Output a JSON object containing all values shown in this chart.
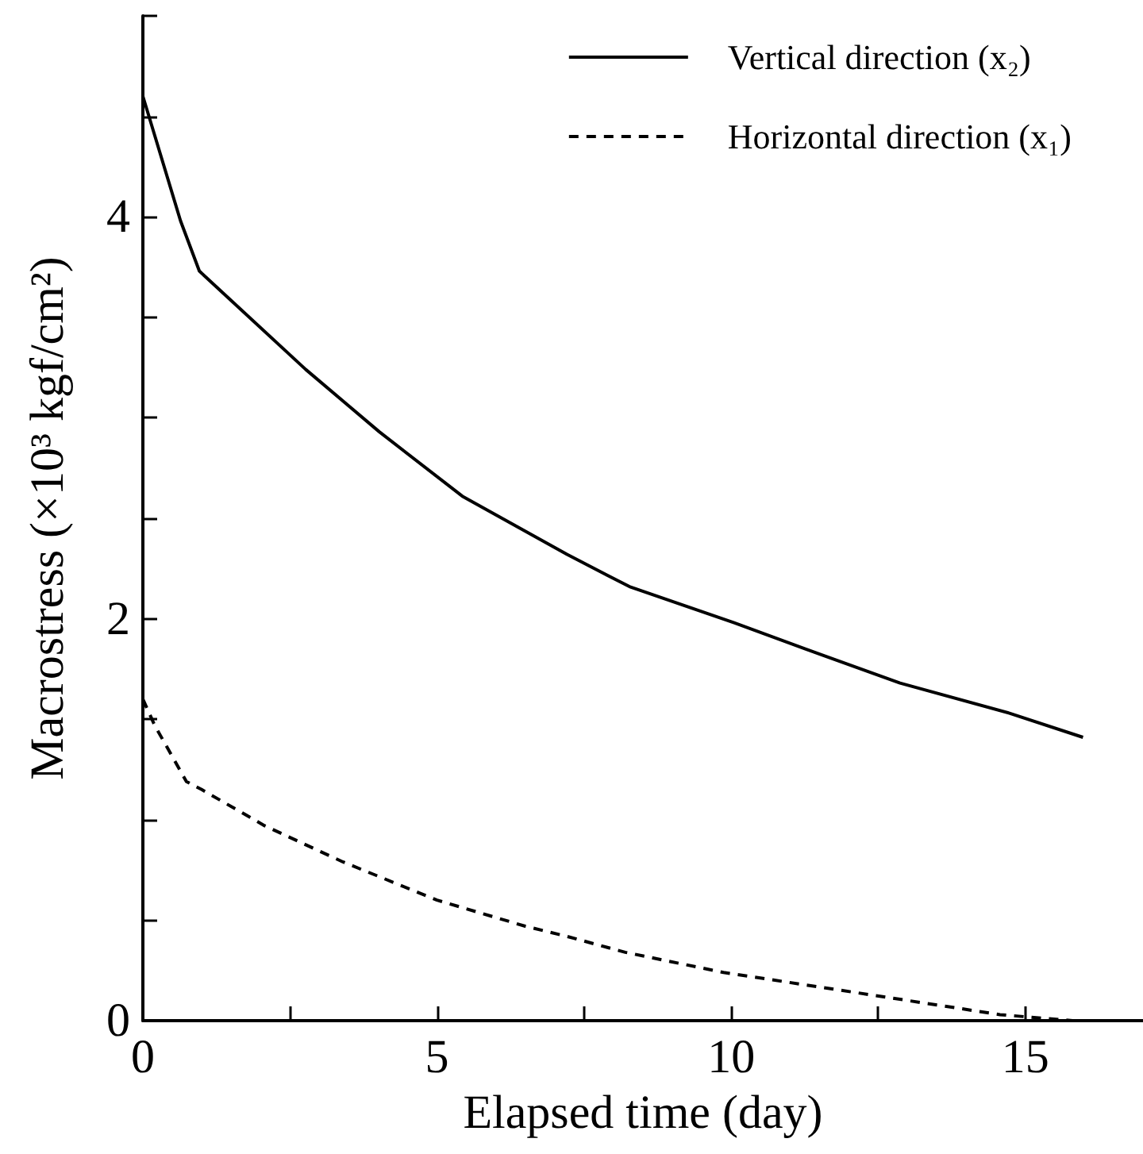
{
  "chart_data": {
    "type": "line",
    "xlabel": "Elapsed time (day)",
    "ylabel": "Macrostress (×10³ kgf/cm²)",
    "xlim": [
      0,
      17
    ],
    "ylim": [
      0,
      5
    ],
    "xticks": [
      0,
      {
        "value": 2.5,
        "label": null
      },
      5,
      {
        "value": 7.5,
        "label": null
      },
      10,
      {
        "value": 12.5,
        "label": null
      },
      15
    ],
    "yticks": [
      0,
      {
        "value": 0.5,
        "label": null
      },
      {
        "value": 1,
        "label": null
      },
      {
        "value": 1.5,
        "label": null
      },
      2,
      {
        "value": 2.5,
        "label": null
      },
      {
        "value": 3,
        "label": null
      },
      {
        "value": 3.5,
        "label": null
      },
      4,
      {
        "value": 4.5,
        "label": null
      },
      {
        "value": 5,
        "label": null
      }
    ],
    "grid": false,
    "legend": "top right",
    "marker": "none",
    "series": [
      {
        "name": "Vertical direction (x₂)",
        "color": "#000000",
        "line_style": "solid",
        "x": [
          0,
          0.64,
          0.96,
          1.44,
          2.77,
          4.02,
          5.43,
          7.21,
          8.27,
          10.05,
          11.54,
          12.87,
          14.73,
          15.98
        ],
        "values": [
          4.6,
          3.98,
          3.73,
          3.6,
          3.24,
          2.93,
          2.61,
          2.32,
          2.16,
          1.98,
          1.82,
          1.68,
          1.53,
          1.41
        ]
      },
      {
        "name": "Horizontal direction (x₁)",
        "color": "#000000",
        "line_style": "dashed",
        "x": [
          0,
          0.2,
          0.74,
          1.0,
          2.07,
          3.4,
          5.0,
          6.5,
          7.2,
          8.2,
          9.87,
          12.34,
          14.57,
          15.8
        ],
        "values": [
          1.6,
          1.47,
          1.19,
          1.15,
          0.97,
          0.79,
          0.6,
          0.47,
          0.42,
          0.34,
          0.24,
          0.13,
          0.03,
          0.0
        ]
      }
    ]
  }
}
